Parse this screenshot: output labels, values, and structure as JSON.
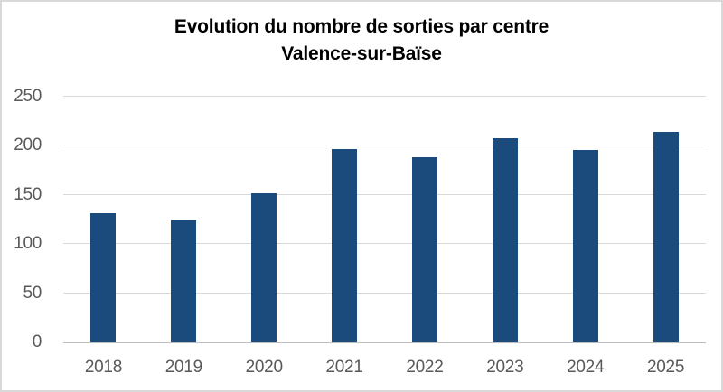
{
  "chart_data": {
    "type": "bar",
    "title": "Evolution du nombre de sorties par centre",
    "subtitle": "Valence-sur-Baïse",
    "categories": [
      "2018",
      "2019",
      "2020",
      "2021",
      "2022",
      "2023",
      "2024",
      "2025"
    ],
    "values": [
      131,
      124,
      152,
      197,
      188,
      208,
      196,
      214
    ],
    "xlabel": "",
    "ylabel": "",
    "ylim": [
      0,
      250
    ],
    "ytick_step": 50,
    "ytick_labels": [
      "0",
      "50",
      "100",
      "150",
      "200",
      "250"
    ],
    "grid": true,
    "legend_position": "none",
    "colors": {
      "bar": "#1b4b7d",
      "tick_label": "#595959",
      "gridline": "#d9d9d9",
      "axis_line": "#bfbfbf",
      "title": "#000000",
      "background": "#ffffff",
      "frame_border": "#d9d9d9"
    }
  }
}
